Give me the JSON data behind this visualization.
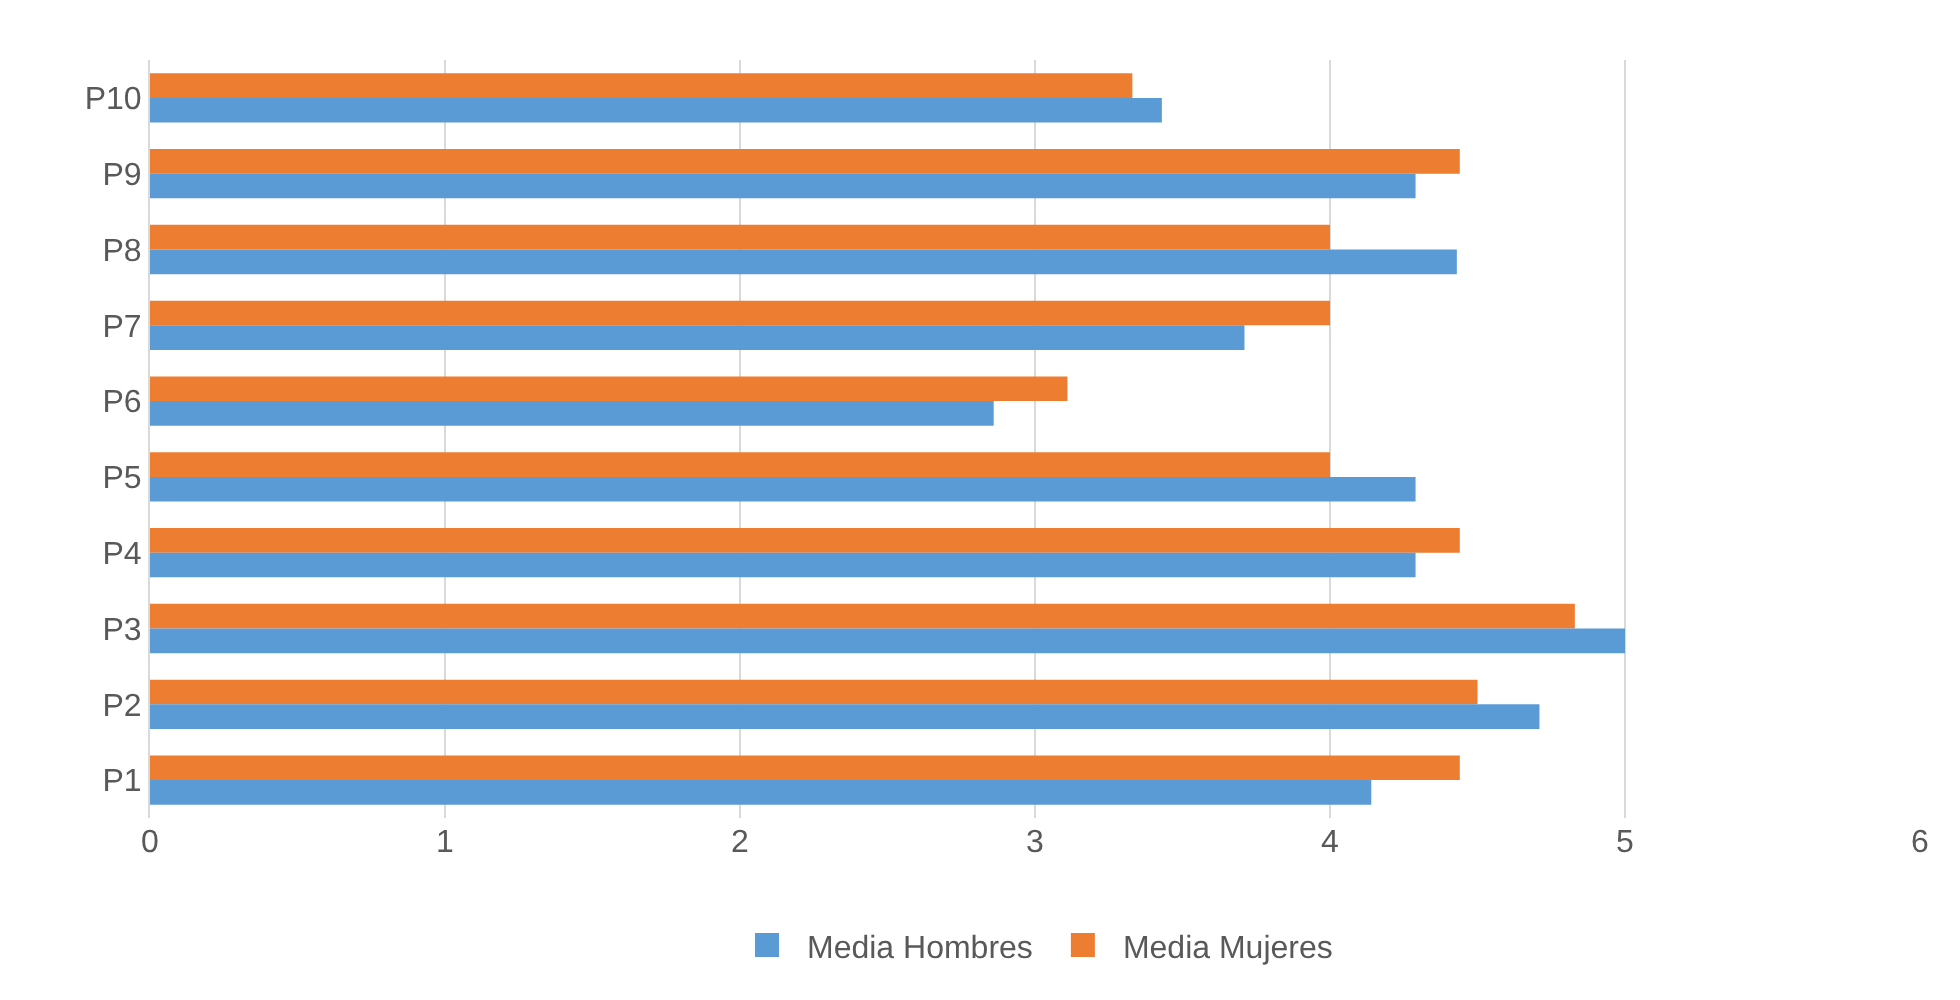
{
  "chart_data": {
    "type": "bar",
    "orientation": "horizontal",
    "categories": [
      "P10",
      "P9",
      "P8",
      "P7",
      "P6",
      "P5",
      "P4",
      "P3",
      "P2",
      "P1"
    ],
    "series": [
      {
        "name": "Media Hombres",
        "color": "#5b9bd5",
        "values": [
          3.43,
          4.29,
          4.43,
          3.71,
          2.86,
          4.29,
          4.29,
          5.0,
          4.71,
          4.14
        ]
      },
      {
        "name": "Media Mujeres",
        "color": "#ed7d31",
        "values": [
          3.33,
          4.44,
          4.0,
          4.0,
          3.11,
          4.0,
          4.44,
          4.83,
          4.5,
          4.44
        ]
      }
    ],
    "xlim": [
      0,
      6
    ],
    "xticks": [
      0,
      1,
      2,
      3,
      4,
      5,
      6
    ],
    "grid": "x",
    "legend": "bottom"
  }
}
